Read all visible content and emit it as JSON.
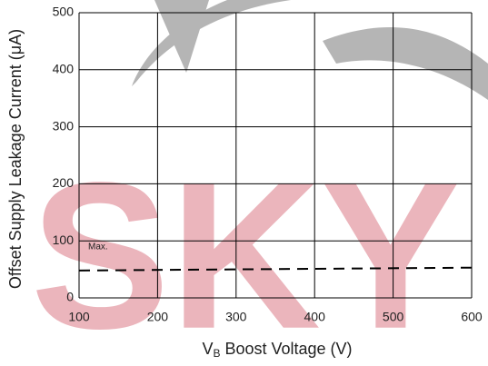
{
  "chart_data": {
    "type": "line",
    "y_label": "Offset Supply Leakage Current (μA)",
    "x_label": "V",
    "x_label_sub": "B",
    "x_label_rest": " Boost Voltage (V)",
    "watermark": "SKY",
    "x": [
      100,
      600
    ],
    "series": [
      {
        "name": "Max.",
        "color": "#000000",
        "values": [
          48,
          53
        ]
      }
    ],
    "xlim": [
      100,
      600
    ],
    "xticks": [
      100,
      200,
      300,
      400,
      500,
      600
    ],
    "ylim": [
      0,
      500
    ],
    "yticks": [
      0,
      100,
      200,
      300,
      400,
      500
    ],
    "grid": true
  }
}
